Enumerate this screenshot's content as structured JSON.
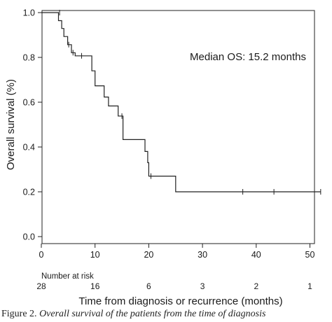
{
  "chart_data": {
    "type": "line",
    "subtype": "kaplan-meier",
    "ylabel": "Overall survival (%)",
    "xlabel": "Time from diagnosis or recurrence (months)",
    "annotation": "Median OS: 15.2 months",
    "xlim": [
      0,
      54
    ],
    "ylim": [
      0,
      1.0
    ],
    "xticks": [
      0,
      10,
      20,
      30,
      40,
      50
    ],
    "yticks": [
      0.0,
      0.2,
      0.4,
      0.6,
      0.8,
      1.0
    ],
    "ytick_labels": [
      "0.0",
      "0.2",
      "0.4",
      "0.6",
      "0.8",
      "1.0"
    ],
    "grid": false,
    "series": [
      {
        "steps": [
          [
            0,
            1.0
          ],
          [
            3.2,
            0.964
          ],
          [
            3.8,
            0.929
          ],
          [
            4.2,
            0.893
          ],
          [
            4.9,
            0.857
          ],
          [
            5.6,
            0.821
          ],
          [
            6.3,
            0.807
          ],
          [
            9.4,
            0.74
          ],
          [
            10.0,
            0.673
          ],
          [
            11.7,
            0.623
          ],
          [
            12.5,
            0.583
          ],
          [
            14.3,
            0.538
          ],
          [
            15.2,
            0.433
          ],
          [
            19.3,
            0.38
          ],
          [
            19.8,
            0.33
          ],
          [
            20.0,
            0.27
          ],
          [
            25.0,
            0.2
          ],
          [
            52.0,
            0.2
          ]
        ],
        "censored": [
          [
            3.4,
            1.0
          ],
          [
            5.1,
            0.857
          ],
          [
            5.9,
            0.821
          ],
          [
            7.5,
            0.807
          ],
          [
            15.0,
            0.538
          ],
          [
            20.4,
            0.27
          ],
          [
            37.5,
            0.2
          ],
          [
            43.3,
            0.2
          ],
          [
            52.0,
            0.2
          ]
        ]
      }
    ],
    "risk_table": {
      "label": "Number at risk",
      "times": [
        0,
        10,
        20,
        30,
        40,
        50
      ],
      "counts": [
        "28",
        "16",
        "6",
        "3",
        "2",
        "1"
      ]
    }
  },
  "caption": {
    "fig_label": "Figure 2.",
    "text": " Overall survival of the patients from the time of diagnosis"
  }
}
